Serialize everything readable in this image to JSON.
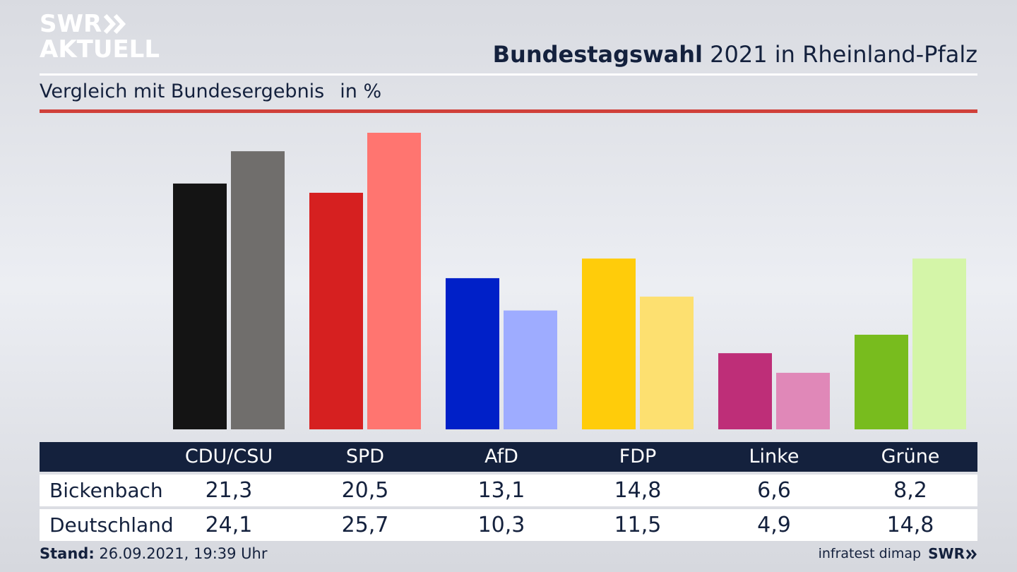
{
  "logo": {
    "line1": "SWR",
    "line2": "AKTUELL"
  },
  "header": {
    "title_bold": "Bundestagswahl",
    "title_rest": " 2021 in Rheinland-Pfalz",
    "subtitle": "Vergleich mit Bundesergebnis",
    "unit": "in %"
  },
  "colors": {
    "accent_rule": "#d0403a",
    "table_header_bg": "#14213d",
    "text": "#14213d"
  },
  "chart_data": {
    "type": "bar",
    "categories": [
      "CDU/CSU",
      "SPD",
      "AfD",
      "FDP",
      "Linke",
      "Grüne"
    ],
    "series": [
      {
        "name": "Bickenbach",
        "values": [
          21.3,
          20.5,
          13.1,
          14.8,
          6.6,
          8.2
        ]
      },
      {
        "name": "Deutschland",
        "values": [
          24.1,
          25.7,
          10.3,
          11.5,
          4.9,
          14.8
        ]
      }
    ],
    "colors": {
      "Bickenbach": [
        "#141414",
        "#d62020",
        "#0020c8",
        "#ffcc0a",
        "#be2e78",
        "#78bc1e"
      ],
      "Deutschland": [
        "#706e6c",
        "#ff7570",
        "#9eacff",
        "#fde070",
        "#e088b8",
        "#d4f5a8"
      ]
    },
    "ylim": [
      0,
      25.7
    ],
    "grid": false
  },
  "table": {
    "headers": [
      "CDU/CSU",
      "SPD",
      "AfD",
      "FDP",
      "Linke",
      "Grüne"
    ],
    "rows": [
      {
        "label": "Bickenbach",
        "values": [
          "21,3",
          "20,5",
          "13,1",
          "14,8",
          "6,6",
          "8,2"
        ]
      },
      {
        "label": "Deutschland",
        "values": [
          "24,1",
          "25,7",
          "10,3",
          "11,5",
          "4,9",
          "14,8"
        ]
      }
    ]
  },
  "footer": {
    "stand_label": "Stand:",
    "stand_value": " 26.09.2021, 19:39 Uhr",
    "source": "infratest dimap",
    "brand": "SWR"
  }
}
